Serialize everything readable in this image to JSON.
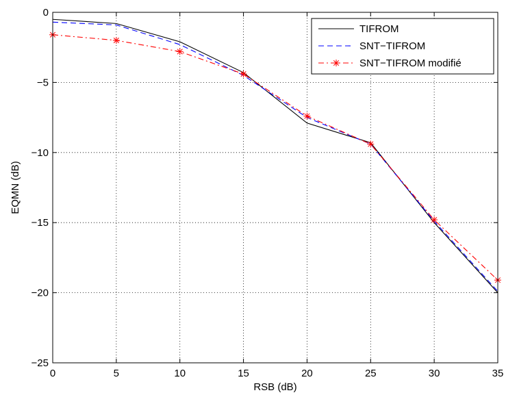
{
  "chart_data": {
    "type": "line",
    "xlabel": "RSB (dB)",
    "ylabel": "EQMN (dB)",
    "xlim": [
      0,
      35
    ],
    "ylim": [
      -25,
      0
    ],
    "xticks": [
      0,
      5,
      10,
      15,
      20,
      25,
      30,
      35
    ],
    "yticks": [
      0,
      -5,
      -10,
      -15,
      -20,
      -25
    ],
    "xtick_labels": [
      "0",
      "5",
      "10",
      "15",
      "20",
      "25",
      "30",
      "35"
    ],
    "ytick_labels": [
      "0",
      "−5",
      "−10",
      "−15",
      "−20",
      "−25"
    ],
    "grid": true,
    "legend_position": "top-right",
    "x": [
      0,
      5,
      10,
      15,
      20,
      25,
      30,
      35
    ],
    "series": [
      {
        "name": "TIFROM",
        "values": [
          -0.5,
          -0.8,
          -2.1,
          -4.3,
          -7.9,
          -9.3,
          -15.0,
          -20.0
        ],
        "color": "#000000",
        "style": "solid",
        "marker": "none"
      },
      {
        "name": "SNT−TIFROM",
        "values": [
          -0.7,
          -0.9,
          -2.3,
          -4.5,
          -7.5,
          -9.4,
          -14.9,
          -19.9
        ],
        "color": "#0000ff",
        "style": "dashed",
        "marker": "none"
      },
      {
        "name": "SNT−TIFROM modifié",
        "values": [
          -1.6,
          -2.0,
          -2.8,
          -4.4,
          -7.4,
          -9.4,
          -14.8,
          -19.1
        ],
        "color": "#ff0000",
        "style": "dashdot",
        "marker": "star"
      }
    ]
  }
}
